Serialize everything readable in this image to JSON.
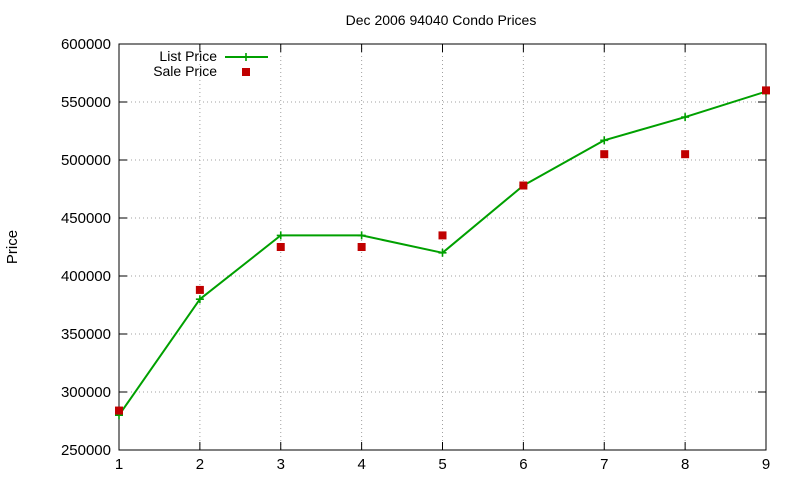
{
  "chart_data": {
    "type": "line",
    "title": "Dec 2006 94040 Condo Prices",
    "xlabel": "",
    "ylabel": "Price",
    "x": [
      1,
      2,
      3,
      4,
      5,
      6,
      7,
      8,
      9
    ],
    "xlim": [
      1,
      9
    ],
    "ylim": [
      250000,
      600000
    ],
    "x_ticks": [
      1,
      2,
      3,
      4,
      5,
      6,
      7,
      8,
      9
    ],
    "y_ticks": [
      250000,
      300000,
      350000,
      400000,
      450000,
      500000,
      550000,
      600000
    ],
    "x_tick_labels": [
      "1",
      "2",
      "3",
      "4",
      "5",
      "6",
      "7",
      "8",
      "9"
    ],
    "y_tick_labels": [
      "250000",
      "300000",
      "350000",
      "400000",
      "450000",
      "500000",
      "550000",
      "600000"
    ],
    "grid": true,
    "legend_position": "top-left",
    "series": [
      {
        "name": "List Price",
        "style": "linespoints",
        "marker": "plus",
        "color": "#00a000",
        "values": [
          280000,
          380000,
          435000,
          435000,
          420000,
          478000,
          517000,
          537000,
          559000
        ]
      },
      {
        "name": "Sale Price",
        "style": "points",
        "marker": "square",
        "color": "#c00000",
        "values": [
          284000,
          388000,
          425000,
          425000,
          435000,
          478000,
          505000,
          505000,
          560000
        ]
      }
    ]
  }
}
